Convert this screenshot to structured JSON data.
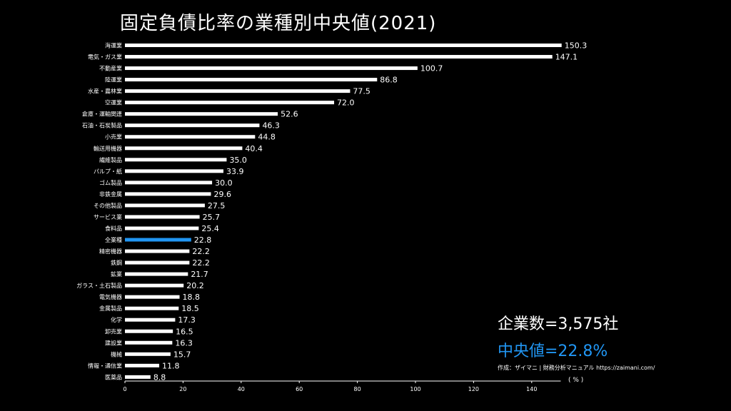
{
  "title": "固定負債比率の業種別中央値(2021)",
  "summary": {
    "count_text": "企業数=3,575社",
    "median_text": "中央値=22.8%",
    "credit": "作成：ザイマニ | 財務分析マニュアル https://zaimani.com/",
    "unit": "( % )"
  },
  "colors": {
    "background": "#000000",
    "bar": "#ffffff",
    "highlight": "#2196f3",
    "text": "#ffffff"
  },
  "chart_data": {
    "type": "bar",
    "orientation": "horizontal",
    "title": "固定負債比率の業種別中央値(2021)",
    "xlabel": "( % )",
    "ylabel": "",
    "xlim": [
      0,
      150
    ],
    "xticks": [
      0,
      20,
      40,
      60,
      80,
      100,
      120,
      140
    ],
    "grid": false,
    "highlight_category": "全業種",
    "categories": [
      "海運業",
      "電気・ガス業",
      "不動産業",
      "陸運業",
      "水産・農林業",
      "空運業",
      "倉庫・運輸関連",
      "石油・石炭製品",
      "小売業",
      "輸送用機器",
      "繊維製品",
      "パルプ・紙",
      "ゴム製品",
      "非鉄金属",
      "その他製品",
      "サービス業",
      "食料品",
      "全業種",
      "精密機器",
      "鉄鋼",
      "鉱業",
      "ガラス・土石製品",
      "電気機器",
      "金属製品",
      "化学",
      "卸売業",
      "建設業",
      "機械",
      "情報・通信業",
      "医薬品"
    ],
    "values": [
      150.3,
      147.1,
      100.7,
      86.8,
      77.5,
      72.0,
      52.6,
      46.3,
      44.8,
      40.4,
      35.0,
      33.9,
      30.0,
      29.6,
      27.5,
      25.7,
      25.4,
      22.8,
      22.2,
      22.2,
      21.7,
      20.2,
      18.8,
      18.5,
      17.3,
      16.5,
      16.3,
      15.7,
      11.8,
      8.8
    ],
    "value_labels": [
      "150.3",
      "147.1",
      "100.7",
      "86.8",
      "77.5",
      "72.0",
      "52.6",
      "46.3",
      "44.8",
      "40.4",
      "35.0",
      "33.9",
      "30.0",
      "29.6",
      "27.5",
      "25.7",
      "25.4",
      "22.8",
      "22.2",
      "22.2",
      "21.7",
      "20.2",
      "18.8",
      "18.5",
      "17.3",
      "16.5",
      "16.3",
      "15.7",
      "11.8",
      "8.8"
    ]
  }
}
